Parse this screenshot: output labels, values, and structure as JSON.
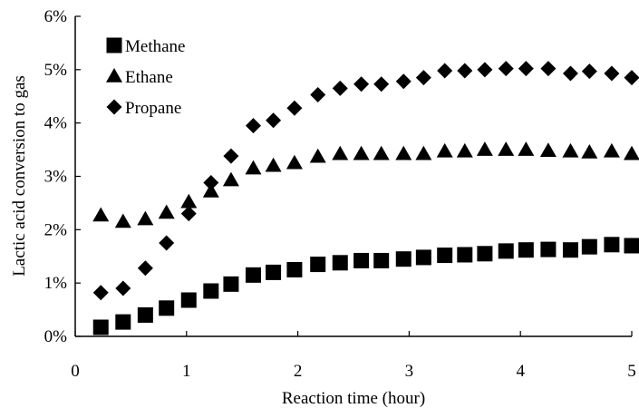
{
  "chart_data": {
    "type": "scatter",
    "title": "",
    "xlabel": "Reaction time (hour)",
    "ylabel": "Lactic acid conversion to gas",
    "xlim": [
      0,
      5
    ],
    "ylim": [
      0,
      6
    ],
    "x_ticks": [
      "0",
      "1",
      "2",
      "3",
      "4",
      "5"
    ],
    "y_ticks": [
      "0%",
      "1%",
      "2%",
      "3%",
      "4%",
      "5%",
      "6%"
    ],
    "grid": false,
    "legend_position": "top-left",
    "series": [
      {
        "name": "Methane",
        "marker": "square",
        "color": "#000000",
        "x": [
          0.23,
          0.43,
          0.63,
          0.82,
          1.02,
          1.22,
          1.4,
          1.6,
          1.78,
          1.97,
          2.18,
          2.38,
          2.57,
          2.75,
          2.95,
          3.13,
          3.32,
          3.5,
          3.68,
          3.87,
          4.05,
          4.25,
          4.45,
          4.62,
          4.82,
          5.0
        ],
        "y": [
          0.17,
          0.27,
          0.4,
          0.53,
          0.68,
          0.85,
          0.98,
          1.15,
          1.2,
          1.25,
          1.35,
          1.38,
          1.42,
          1.42,
          1.45,
          1.48,
          1.52,
          1.53,
          1.55,
          1.6,
          1.62,
          1.63,
          1.62,
          1.68,
          1.72,
          1.7
        ]
      },
      {
        "name": "Ethane",
        "marker": "triangle",
        "color": "#000000",
        "x": [
          0.23,
          0.43,
          0.63,
          0.82,
          1.02,
          1.22,
          1.4,
          1.6,
          1.78,
          1.97,
          2.18,
          2.38,
          2.57,
          2.75,
          2.95,
          3.13,
          3.32,
          3.5,
          3.68,
          3.87,
          4.05,
          4.25,
          4.45,
          4.62,
          4.82,
          5.0
        ],
        "y": [
          2.27,
          2.15,
          2.2,
          2.32,
          2.52,
          2.72,
          2.93,
          3.15,
          3.2,
          3.25,
          3.37,
          3.42,
          3.42,
          3.42,
          3.42,
          3.42,
          3.47,
          3.47,
          3.5,
          3.5,
          3.5,
          3.48,
          3.47,
          3.45,
          3.47,
          3.42
        ]
      },
      {
        "name": "Propane",
        "marker": "diamond",
        "color": "#000000",
        "x": [
          0.23,
          0.43,
          0.63,
          0.82,
          1.02,
          1.22,
          1.4,
          1.6,
          1.78,
          1.97,
          2.18,
          2.38,
          2.57,
          2.75,
          2.95,
          3.13,
          3.32,
          3.5,
          3.68,
          3.87,
          4.05,
          4.25,
          4.45,
          4.62,
          4.82,
          5.0
        ],
        "y": [
          0.82,
          0.9,
          1.28,
          1.75,
          2.3,
          2.88,
          3.38,
          3.95,
          4.05,
          4.28,
          4.53,
          4.65,
          4.73,
          4.73,
          4.78,
          4.85,
          4.98,
          4.98,
          5.0,
          5.02,
          5.02,
          5.02,
          4.93,
          4.97,
          4.93,
          4.85
        ]
      }
    ]
  }
}
